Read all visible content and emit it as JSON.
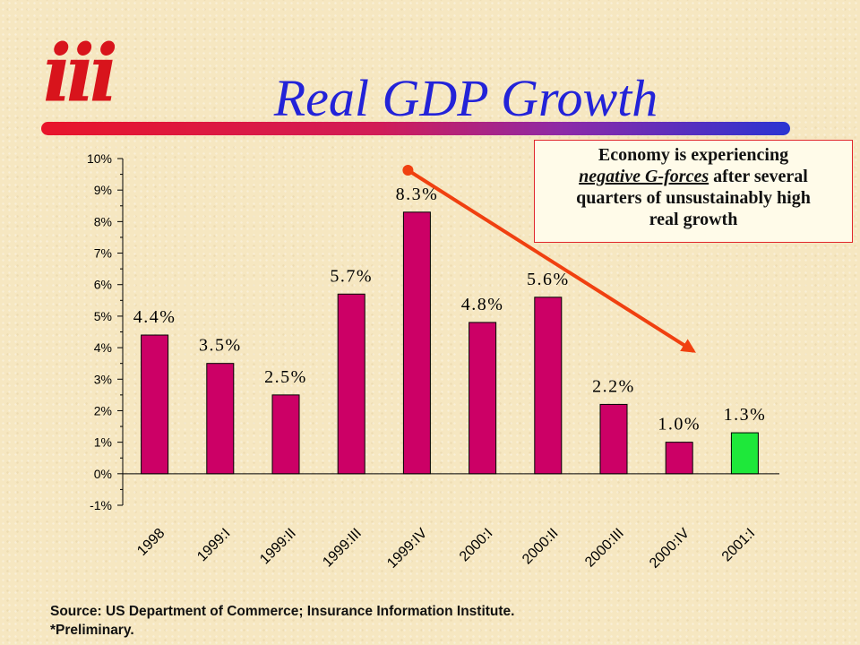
{
  "logo": {
    "text": "iii"
  },
  "title": "Real GDP Growth",
  "callout": {
    "line1": "Economy is experiencing",
    "line2_em": "negative G-forces",
    "line2_rest": " after several",
    "line3": "quarters of unsustainably high",
    "line4": "real growth"
  },
  "footer": {
    "source": "Source: US Department of Commerce; Insurance Information Institute.",
    "note": "*Preliminary."
  },
  "colors": {
    "bar": "#cc0066",
    "highlight_bar": "#1ee83a",
    "arrow": "#f04010",
    "title": "#2323d8",
    "logo": "#d8141c"
  },
  "chart_data": {
    "type": "bar",
    "categories": [
      "1998",
      "1999:I",
      "1999:II",
      "1999:III",
      "1999:IV",
      "2000:I",
      "2000:II",
      "2000:III",
      "2000:IV",
      "2001:I"
    ],
    "values": [
      4.4,
      3.5,
      2.5,
      5.7,
      8.3,
      4.8,
      5.6,
      2.2,
      1.0,
      1.3
    ],
    "data_labels": [
      "4.4%",
      "3.5%",
      "2.5%",
      "5.7%",
      "8.3%",
      "4.8%",
      "5.6%",
      "2.2%",
      "1.0%",
      "1.3%"
    ],
    "highlight_index": 9,
    "title": "Real GDP Growth",
    "xlabel": "",
    "ylabel": "",
    "ylim": [
      -1,
      10
    ],
    "yticks": [
      10,
      9,
      8,
      7,
      6,
      5,
      4,
      3,
      2,
      1,
      0,
      -1
    ],
    "ytick_labels": [
      "10%",
      "9%",
      "8%",
      "7%",
      "6%",
      "5%",
      "4%",
      "3%",
      "2%",
      "1%",
      "0%",
      "-1%"
    ],
    "grid": false,
    "annotation": {
      "type": "arrow",
      "from": "1999:IV",
      "to": "2000:IV"
    }
  }
}
